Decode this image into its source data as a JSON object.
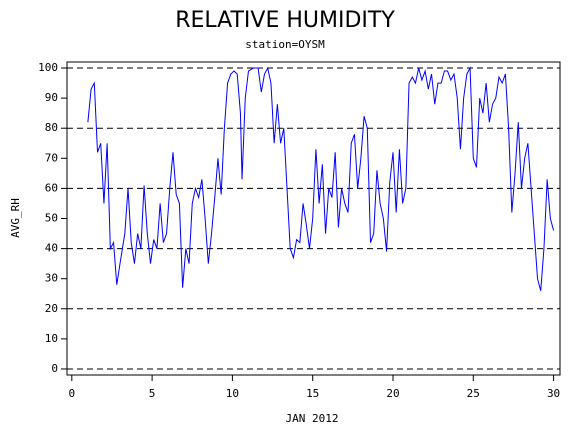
{
  "chart_data": {
    "type": "line",
    "title": "RELATIVE HUMIDITY",
    "subtitle": "station=OYSM",
    "x_label": "JAN 2012",
    "y_label": "AVG_RH",
    "color": "#0000ff",
    "xlim": [
      -0.3,
      30.4
    ],
    "xticks": [
      0,
      5,
      10,
      15,
      20,
      25,
      30
    ],
    "ylim": [
      -2,
      102
    ],
    "yticks": [
      0,
      10,
      20,
      30,
      40,
      50,
      60,
      70,
      80,
      90,
      100
    ],
    "ygrid": [
      0,
      20,
      40,
      60,
      80,
      100
    ],
    "x": [
      1.0,
      1.2,
      1.4,
      1.6,
      1.8,
      2.0,
      2.2,
      2.4,
      2.6,
      2.8,
      3.0,
      3.3,
      3.5,
      3.7,
      3.9,
      4.1,
      4.3,
      4.5,
      4.7,
      4.9,
      5.1,
      5.3,
      5.5,
      5.7,
      5.9,
      6.1,
      6.3,
      6.5,
      6.7,
      6.9,
      7.1,
      7.3,
      7.5,
      7.7,
      7.9,
      8.1,
      8.3,
      8.5,
      8.7,
      8.9,
      9.1,
      9.3,
      9.5,
      9.7,
      9.9,
      10.1,
      10.3,
      10.5,
      10.6,
      10.8,
      11.0,
      11.3,
      11.6,
      11.8,
      12.0,
      12.2,
      12.4,
      12.6,
      12.8,
      13.0,
      13.2,
      13.4,
      13.6,
      13.8,
      14.0,
      14.2,
      14.4,
      14.6,
      14.8,
      15.0,
      15.2,
      15.4,
      15.6,
      15.8,
      16.0,
      16.2,
      16.4,
      16.6,
      16.8,
      17.0,
      17.2,
      17.4,
      17.6,
      17.8,
      18.0,
      18.2,
      18.4,
      18.6,
      18.8,
      19.0,
      19.2,
      19.4,
      19.6,
      19.8,
      20.0,
      20.2,
      20.4,
      20.6,
      20.8,
      21.0,
      21.2,
      21.4,
      21.6,
      21.8,
      22.0,
      22.2,
      22.4,
      22.6,
      22.8,
      23.0,
      23.2,
      23.4,
      23.6,
      23.8,
      24.0,
      24.2,
      24.4,
      24.6,
      24.8,
      25.0,
      25.2,
      25.4,
      25.6,
      25.8,
      26.0,
      26.2,
      26.4,
      26.6,
      26.8,
      27.0,
      27.2,
      27.4,
      27.6,
      27.8,
      28.0,
      28.2,
      28.4,
      28.6,
      28.8,
      29.0,
      29.2,
      29.4,
      29.6,
      29.8,
      30.0
    ],
    "values": [
      82,
      93,
      95,
      72,
      75,
      55,
      75,
      40,
      42,
      28,
      35,
      45,
      60,
      42,
      35,
      45,
      40,
      61,
      45,
      35,
      43,
      40,
      55,
      42,
      45,
      60,
      72,
      58,
      55,
      27,
      40,
      35,
      55,
      60,
      57,
      63,
      50,
      35,
      45,
      57,
      70,
      58,
      80,
      95,
      98,
      99,
      98,
      85,
      63,
      90,
      99,
      100,
      100,
      92,
      98,
      100,
      95,
      75,
      88,
      75,
      80,
      60,
      40,
      37,
      43,
      42,
      55,
      48,
      40,
      50,
      73,
      55,
      68,
      45,
      60,
      57,
      72,
      47,
      60,
      55,
      52,
      75,
      78,
      60,
      70,
      84,
      80,
      42,
      45,
      66,
      55,
      50,
      39,
      62,
      72,
      52,
      73,
      55,
      60,
      95,
      97,
      95,
      100,
      96,
      99,
      93,
      98,
      88,
      95,
      95,
      99,
      99,
      96,
      98,
      90,
      73,
      90,
      98,
      100,
      70,
      67,
      90,
      85,
      95,
      82,
      88,
      90,
      97,
      95,
      98,
      80,
      52,
      65,
      82,
      60,
      70,
      75,
      60,
      45,
      30,
      26,
      40,
      63,
      50,
      46
    ]
  }
}
